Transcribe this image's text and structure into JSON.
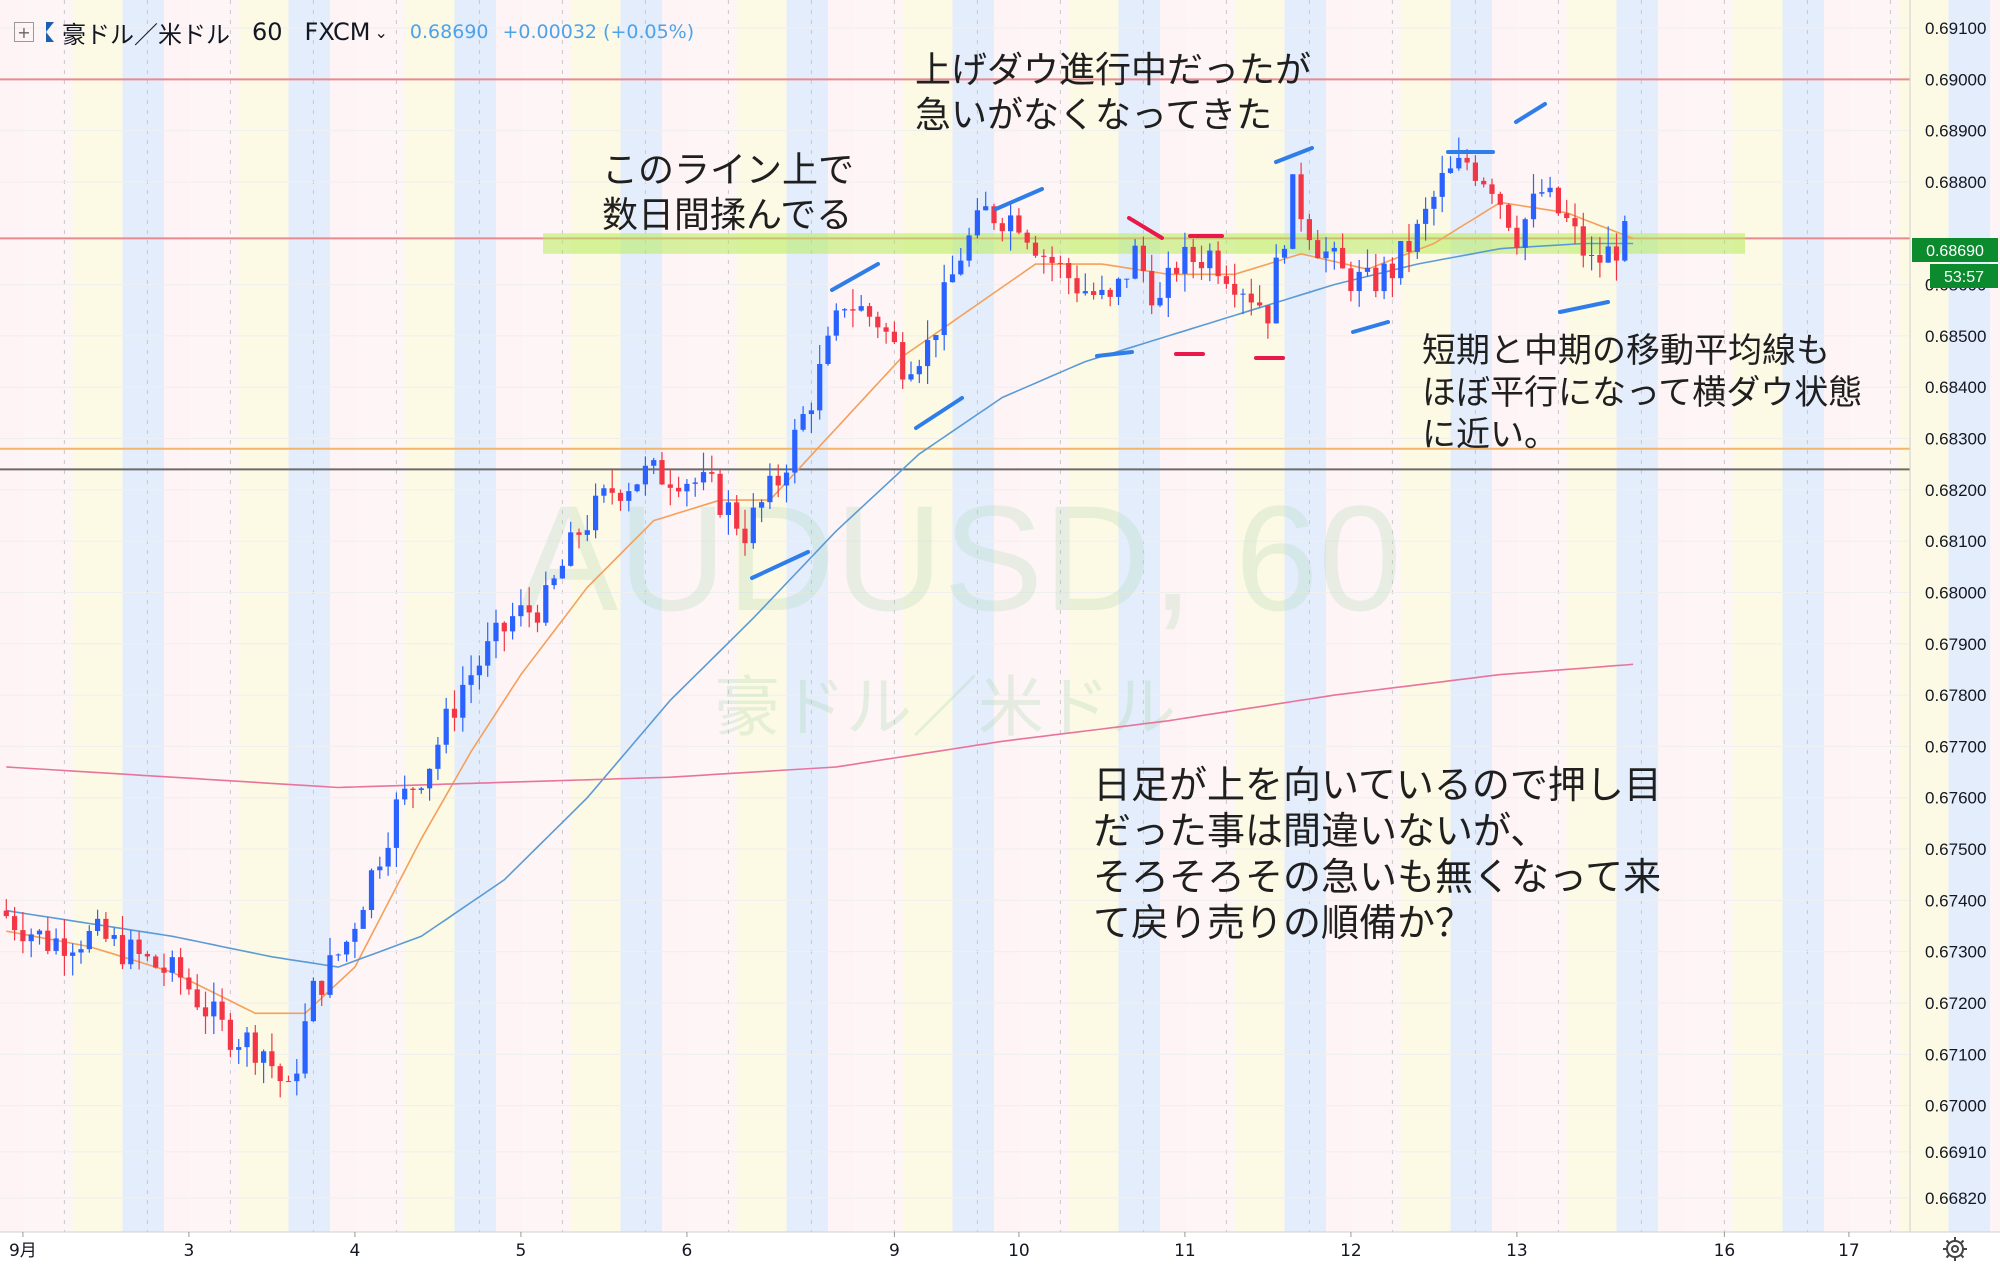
{
  "header": {
    "symbol": "豪ドル／米ドル",
    "interval": "60",
    "broker": "FXCM",
    "price": "0.68690",
    "change": "+0.00032 (+0.05%)"
  },
  "watermark": {
    "line1": "AUDUSD, 60",
    "line2": "豪ドル／米ドル"
  },
  "price_label": "0.68690",
  "countdown": "53:57",
  "annotations": {
    "top_right": [
      "上げダウ進行中だったが",
      "急いがなくなってきた"
    ],
    "top_left": [
      "このライン上で",
      "数日間揉んでる"
    ],
    "right": [
      "短期と中期の移動平均線も",
      "ほぼ平行になって横ダウ状態",
      "に近い。"
    ],
    "bottom": [
      "日足が上を向いているので押し目",
      "だった事は間違いないが、",
      "そろそろその急いも無くなって来",
      "て戻り売りの順備か？"
    ]
  },
  "colors": {
    "up": "#2962ff",
    "down": "#f23645",
    "ma_short": "#f5a05a",
    "ma_mid": "#5b9bd5",
    "ma_long": "#e8749e",
    "zone": "#b7ec5a",
    "blue_marks": "#2f7de8",
    "red_marks": "#e8194a"
  },
  "chart_data": {
    "type": "candlestick",
    "symbol": "AUDUSD",
    "interval": "60",
    "ylim": [
      0.6678,
      0.6915
    ],
    "y_ticks": [
      0.691,
      0.69,
      0.689,
      0.688,
      0.6869,
      0.686,
      0.685,
      0.684,
      0.683,
      0.682,
      0.681,
      0.68,
      0.679,
      0.678,
      0.677,
      0.676,
      0.675,
      0.674,
      0.673,
      0.672,
      0.671,
      0.67,
      0.6691,
      0.6682
    ],
    "y_tick_labels": [
      "0.69100",
      "0.69000",
      "0.68900",
      "0.68800",
      "0.68690",
      "0.68600",
      "0.68500",
      "0.68400",
      "0.68300",
      "0.68200",
      "0.68100",
      "0.68000",
      "0.67900",
      "0.67800",
      "0.67700",
      "0.67600",
      "0.67500",
      "0.67400",
      "0.67300",
      "0.67200",
      "0.67100",
      "0.67000",
      "0.66910",
      "0.66820"
    ],
    "x_labels": [
      "9月",
      "3",
      "4",
      "5",
      "6",
      "9",
      "10",
      "11",
      "12",
      "13",
      "16",
      "17"
    ],
    "x_label_bar_index": [
      2,
      22,
      42,
      62,
      82,
      107,
      122,
      142,
      162,
      182,
      207,
      222
    ],
    "bar_count": 196,
    "ohlc_path": [
      [
        0,
        0.6738
      ],
      [
        6,
        0.6732
      ],
      [
        12,
        0.6733
      ],
      [
        18,
        0.6728
      ],
      [
        22,
        0.6725
      ],
      [
        27,
        0.6715
      ],
      [
        32,
        0.6711
      ],
      [
        35,
        0.6702
      ],
      [
        38,
        0.6722
      ],
      [
        42,
        0.6732
      ],
      [
        48,
        0.6758
      ],
      [
        52,
        0.6767
      ],
      [
        56,
        0.6782
      ],
      [
        62,
        0.6795
      ],
      [
        66,
        0.6798
      ],
      [
        70,
        0.6812
      ],
      [
        74,
        0.682
      ],
      [
        78,
        0.6823
      ],
      [
        82,
        0.6823
      ],
      [
        86,
        0.682
      ],
      [
        90,
        0.6812
      ],
      [
        94,
        0.6822
      ],
      [
        98,
        0.6838
      ],
      [
        102,
        0.6857
      ],
      [
        106,
        0.6853
      ],
      [
        109,
        0.6845
      ],
      [
        112,
        0.6848
      ],
      [
        116,
        0.6866
      ],
      [
        119,
        0.6874
      ],
      [
        123,
        0.6873
      ],
      [
        126,
        0.6866
      ],
      [
        130,
        0.686
      ],
      [
        134,
        0.6856
      ],
      [
        137,
        0.6866
      ],
      [
        140,
        0.6856
      ],
      [
        142,
        0.6864
      ],
      [
        146,
        0.6866
      ],
      [
        150,
        0.686
      ],
      [
        153,
        0.6855
      ],
      [
        156,
        0.6878
      ],
      [
        159,
        0.6868
      ],
      [
        162,
        0.6862
      ],
      [
        165,
        0.686
      ],
      [
        168,
        0.6863
      ],
      [
        171,
        0.687
      ],
      [
        174,
        0.688
      ],
      [
        177,
        0.6884
      ],
      [
        180,
        0.688
      ],
      [
        183,
        0.687
      ],
      [
        186,
        0.6878
      ],
      [
        189,
        0.6872
      ],
      [
        192,
        0.6864
      ],
      [
        194,
        0.6866
      ],
      [
        196,
        0.6869
      ]
    ],
    "ma_short_path": [
      [
        0,
        0.6734
      ],
      [
        10,
        0.6731
      ],
      [
        20,
        0.6726
      ],
      [
        30,
        0.6718
      ],
      [
        36,
        0.6718
      ],
      [
        42,
        0.6727
      ],
      [
        50,
        0.6752
      ],
      [
        56,
        0.6769
      ],
      [
        62,
        0.6784
      ],
      [
        70,
        0.6801
      ],
      [
        78,
        0.6814
      ],
      [
        86,
        0.6818
      ],
      [
        92,
        0.6818
      ],
      [
        100,
        0.6832
      ],
      [
        108,
        0.6846
      ],
      [
        116,
        0.6855
      ],
      [
        124,
        0.6864
      ],
      [
        132,
        0.6864
      ],
      [
        140,
        0.6862
      ],
      [
        148,
        0.6862
      ],
      [
        156,
        0.6866
      ],
      [
        164,
        0.6863
      ],
      [
        172,
        0.6868
      ],
      [
        180,
        0.6876
      ],
      [
        188,
        0.6874
      ],
      [
        196,
        0.6869
      ]
    ],
    "ma_mid_path": [
      [
        0,
        0.6738
      ],
      [
        20,
        0.6733
      ],
      [
        32,
        0.6729
      ],
      [
        40,
        0.6727
      ],
      [
        50,
        0.6733
      ],
      [
        60,
        0.6744
      ],
      [
        70,
        0.676
      ],
      [
        80,
        0.6779
      ],
      [
        90,
        0.6795
      ],
      [
        100,
        0.6812
      ],
      [
        110,
        0.6827
      ],
      [
        120,
        0.6838
      ],
      [
        130,
        0.6845
      ],
      [
        140,
        0.685
      ],
      [
        150,
        0.6855
      ],
      [
        160,
        0.686
      ],
      [
        170,
        0.6864
      ],
      [
        180,
        0.6867
      ],
      [
        190,
        0.6868
      ],
      [
        196,
        0.6868
      ]
    ],
    "ma_long_path": [
      [
        0,
        0.6766
      ],
      [
        20,
        0.6764
      ],
      [
        40,
        0.6762
      ],
      [
        60,
        0.6763
      ],
      [
        80,
        0.6764
      ],
      [
        100,
        0.6766
      ],
      [
        120,
        0.6771
      ],
      [
        140,
        0.6775
      ],
      [
        160,
        0.678
      ],
      [
        180,
        0.6784
      ],
      [
        196,
        0.6786
      ]
    ],
    "horizontal_lines": [
      {
        "price": 0.69,
        "color": "#e88a90"
      },
      {
        "price": 0.6869,
        "color": "#e88a90"
      },
      {
        "price": 0.6828,
        "color": "#f2b56b"
      },
      {
        "price": 0.6824,
        "color": "#6b6b6b"
      }
    ],
    "zone": {
      "price_from": 0.6866,
      "price_to": 0.687
    },
    "last_price": 0.6869
  }
}
